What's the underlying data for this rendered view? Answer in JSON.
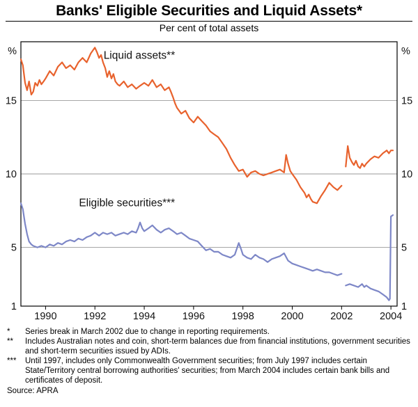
{
  "title": "Banks' Eligible Securities and Liquid Assets*",
  "subtitle": "Per cent of total assets",
  "source": "Source: APRA",
  "footnotes": [
    {
      "marker": "*",
      "text": "Series break in March 2002 due to change in reporting requirements."
    },
    {
      "marker": "**",
      "text": "Includes Australian notes and coin, short-term balances due from financial institutions, government securities and short-term securities issued by ADIs."
    },
    {
      "marker": "***",
      "text": "Until 1997, includes only Commonwealth Government securities; from July 1997 includes certain State/Territory central borrowing authorities' securities; from March 2004 includes certain bank bills and certificates of deposit."
    }
  ],
  "chart_data": {
    "type": "line",
    "title": "Banks' Eligible Securities and Liquid Assets*",
    "subtitle": "Per cent of total assets",
    "unit_label": "%",
    "grid_color": "#999999",
    "frame_color": "#000000",
    "x_axis": {
      "min": 1989.0,
      "max": 2004.25,
      "tick_labels": [
        1990,
        1992,
        1994,
        1996,
        1998,
        2000,
        2002,
        2004
      ]
    },
    "y_axis": {
      "min": 1,
      "max": 19,
      "gridlines": [
        5,
        10,
        15
      ],
      "tick_labels": [
        1,
        5,
        10,
        15
      ]
    },
    "series": [
      {
        "name": "Liquid assets**",
        "color": "#e8622d",
        "label_pos": {
          "x": 1993.8,
          "y": 17.85
        },
        "segments": [
          [
            [
              1989.0,
              17.8
            ],
            [
              1989.08,
              17.4
            ],
            [
              1989.17,
              16.2
            ],
            [
              1989.25,
              15.7
            ],
            [
              1989.33,
              16.3
            ],
            [
              1989.42,
              15.4
            ],
            [
              1989.5,
              15.6
            ],
            [
              1989.58,
              16.2
            ],
            [
              1989.67,
              16.0
            ],
            [
              1989.75,
              16.4
            ],
            [
              1989.83,
              16.1
            ],
            [
              1989.92,
              16.3
            ],
            [
              1990.0,
              16.5
            ],
            [
              1990.17,
              17.0
            ],
            [
              1990.33,
              16.7
            ],
            [
              1990.5,
              17.3
            ],
            [
              1990.67,
              17.6
            ],
            [
              1990.83,
              17.2
            ],
            [
              1991.0,
              17.4
            ],
            [
              1991.17,
              17.1
            ],
            [
              1991.33,
              17.6
            ],
            [
              1991.5,
              17.9
            ],
            [
              1991.67,
              17.6
            ],
            [
              1991.83,
              18.2
            ],
            [
              1992.0,
              18.6
            ],
            [
              1992.08,
              18.3
            ],
            [
              1992.17,
              17.9
            ],
            [
              1992.25,
              18.1
            ],
            [
              1992.33,
              17.6
            ],
            [
              1992.42,
              17.2
            ],
            [
              1992.5,
              16.6
            ],
            [
              1992.58,
              17.0
            ],
            [
              1992.67,
              16.5
            ],
            [
              1992.75,
              16.8
            ],
            [
              1992.83,
              16.3
            ],
            [
              1992.92,
              16.1
            ],
            [
              1993.0,
              16.0
            ],
            [
              1993.17,
              16.3
            ],
            [
              1993.33,
              15.9
            ],
            [
              1993.5,
              16.1
            ],
            [
              1993.67,
              15.8
            ],
            [
              1993.83,
              16.0
            ],
            [
              1994.0,
              16.2
            ],
            [
              1994.17,
              16.0
            ],
            [
              1994.33,
              16.4
            ],
            [
              1994.5,
              15.9
            ],
            [
              1994.67,
              16.1
            ],
            [
              1994.83,
              15.7
            ],
            [
              1995.0,
              15.9
            ],
            [
              1995.08,
              15.6
            ],
            [
              1995.17,
              15.2
            ],
            [
              1995.25,
              14.8
            ],
            [
              1995.33,
              14.5
            ],
            [
              1995.5,
              14.1
            ],
            [
              1995.67,
              14.3
            ],
            [
              1995.83,
              13.8
            ],
            [
              1996.0,
              13.5
            ],
            [
              1996.17,
              13.9
            ],
            [
              1996.33,
              13.6
            ],
            [
              1996.5,
              13.3
            ],
            [
              1996.67,
              12.9
            ],
            [
              1996.83,
              12.7
            ],
            [
              1997.0,
              12.5
            ],
            [
              1997.17,
              12.1
            ],
            [
              1997.33,
              11.7
            ],
            [
              1997.5,
              11.1
            ],
            [
              1997.67,
              10.6
            ],
            [
              1997.83,
              10.2
            ],
            [
              1998.0,
              10.3
            ],
            [
              1998.17,
              9.8
            ],
            [
              1998.33,
              10.1
            ],
            [
              1998.5,
              10.2
            ],
            [
              1998.67,
              10.0
            ],
            [
              1998.83,
              9.9
            ],
            [
              1999.0,
              10.0
            ],
            [
              1999.17,
              10.1
            ],
            [
              1999.33,
              10.2
            ],
            [
              1999.5,
              10.3
            ],
            [
              1999.67,
              10.1
            ],
            [
              1999.75,
              11.3
            ],
            [
              1999.83,
              10.7
            ],
            [
              1999.92,
              10.2
            ],
            [
              2000.0,
              10.0
            ],
            [
              2000.17,
              9.6
            ],
            [
              2000.33,
              9.1
            ],
            [
              2000.5,
              8.7
            ],
            [
              2000.58,
              8.4
            ],
            [
              2000.67,
              8.6
            ],
            [
              2000.75,
              8.3
            ],
            [
              2000.83,
              8.1
            ],
            [
              2001.0,
              8.0
            ],
            [
              2001.17,
              8.5
            ],
            [
              2001.33,
              8.9
            ],
            [
              2001.5,
              9.4
            ],
            [
              2001.67,
              9.1
            ],
            [
              2001.83,
              8.9
            ],
            [
              2002.0,
              9.2
            ]
          ],
          [
            [
              2002.17,
              10.5
            ],
            [
              2002.25,
              11.9
            ],
            [
              2002.33,
              11.1
            ],
            [
              2002.42,
              10.8
            ],
            [
              2002.5,
              10.6
            ],
            [
              2002.58,
              10.9
            ],
            [
              2002.67,
              10.5
            ],
            [
              2002.75,
              10.4
            ],
            [
              2002.83,
              10.7
            ],
            [
              2002.92,
              10.5
            ],
            [
              2003.0,
              10.7
            ],
            [
              2003.17,
              11.0
            ],
            [
              2003.33,
              11.2
            ],
            [
              2003.5,
              11.1
            ],
            [
              2003.67,
              11.4
            ],
            [
              2003.83,
              11.6
            ],
            [
              2003.92,
              11.4
            ],
            [
              2004.0,
              11.6
            ],
            [
              2004.08,
              11.6
            ]
          ]
        ]
      },
      {
        "name": "Eligible securities***",
        "color": "#7d87c7",
        "label_pos": {
          "x": 1993.3,
          "y": 7.8
        },
        "segments": [
          [
            [
              1989.0,
              8.0
            ],
            [
              1989.08,
              7.6
            ],
            [
              1989.17,
              6.6
            ],
            [
              1989.25,
              5.9
            ],
            [
              1989.33,
              5.4
            ],
            [
              1989.42,
              5.2
            ],
            [
              1989.5,
              5.1
            ],
            [
              1989.67,
              5.0
            ],
            [
              1989.83,
              5.1
            ],
            [
              1990.0,
              5.0
            ],
            [
              1990.17,
              5.2
            ],
            [
              1990.33,
              5.1
            ],
            [
              1990.5,
              5.3
            ],
            [
              1990.67,
              5.2
            ],
            [
              1990.83,
              5.4
            ],
            [
              1991.0,
              5.5
            ],
            [
              1991.17,
              5.4
            ],
            [
              1991.33,
              5.6
            ],
            [
              1991.5,
              5.5
            ],
            [
              1991.67,
              5.7
            ],
            [
              1991.83,
              5.8
            ],
            [
              1992.0,
              6.0
            ],
            [
              1992.17,
              5.8
            ],
            [
              1992.33,
              6.0
            ],
            [
              1992.5,
              5.9
            ],
            [
              1992.67,
              6.0
            ],
            [
              1992.83,
              5.8
            ],
            [
              1993.0,
              5.9
            ],
            [
              1993.17,
              6.0
            ],
            [
              1993.33,
              5.9
            ],
            [
              1993.5,
              6.1
            ],
            [
              1993.67,
              6.0
            ],
            [
              1993.75,
              6.3
            ],
            [
              1993.83,
              6.7
            ],
            [
              1993.92,
              6.3
            ],
            [
              1994.0,
              6.1
            ],
            [
              1994.17,
              6.3
            ],
            [
              1994.33,
              6.5
            ],
            [
              1994.5,
              6.2
            ],
            [
              1994.67,
              6.0
            ],
            [
              1994.83,
              6.2
            ],
            [
              1995.0,
              6.3
            ],
            [
              1995.17,
              6.1
            ],
            [
              1995.33,
              5.9
            ],
            [
              1995.5,
              6.0
            ],
            [
              1995.67,
              5.8
            ],
            [
              1995.83,
              5.6
            ],
            [
              1996.0,
              5.5
            ],
            [
              1996.17,
              5.4
            ],
            [
              1996.33,
              5.1
            ],
            [
              1996.5,
              4.8
            ],
            [
              1996.67,
              4.9
            ],
            [
              1996.83,
              4.7
            ],
            [
              1997.0,
              4.7
            ],
            [
              1997.17,
              4.5
            ],
            [
              1997.33,
              4.4
            ],
            [
              1997.5,
              4.3
            ],
            [
              1997.67,
              4.5
            ],
            [
              1997.83,
              5.3
            ],
            [
              1997.92,
              4.9
            ],
            [
              1998.0,
              4.5
            ],
            [
              1998.17,
              4.3
            ],
            [
              1998.33,
              4.2
            ],
            [
              1998.5,
              4.5
            ],
            [
              1998.67,
              4.3
            ],
            [
              1998.83,
              4.2
            ],
            [
              1999.0,
              4.0
            ],
            [
              1999.17,
              4.2
            ],
            [
              1999.33,
              4.3
            ],
            [
              1999.5,
              4.4
            ],
            [
              1999.67,
              4.6
            ],
            [
              1999.83,
              4.1
            ],
            [
              2000.0,
              3.9
            ],
            [
              2000.17,
              3.8
            ],
            [
              2000.33,
              3.7
            ],
            [
              2000.5,
              3.6
            ],
            [
              2000.67,
              3.5
            ],
            [
              2000.83,
              3.4
            ],
            [
              2001.0,
              3.5
            ],
            [
              2001.17,
              3.4
            ],
            [
              2001.33,
              3.3
            ],
            [
              2001.5,
              3.3
            ],
            [
              2001.67,
              3.2
            ],
            [
              2001.83,
              3.1
            ],
            [
              2002.0,
              3.2
            ]
          ],
          [
            [
              2002.17,
              2.4
            ],
            [
              2002.33,
              2.5
            ],
            [
              2002.5,
              2.4
            ],
            [
              2002.67,
              2.3
            ],
            [
              2002.83,
              2.5
            ],
            [
              2002.92,
              2.3
            ],
            [
              2003.0,
              2.4
            ],
            [
              2003.17,
              2.2
            ],
            [
              2003.33,
              2.1
            ],
            [
              2003.5,
              2.0
            ],
            [
              2003.67,
              1.8
            ],
            [
              2003.83,
              1.6
            ],
            [
              2003.92,
              1.4
            ],
            [
              2003.96,
              1.5
            ],
            [
              2004.0,
              7.1
            ],
            [
              2004.08,
              7.2
            ]
          ]
        ]
      }
    ]
  }
}
